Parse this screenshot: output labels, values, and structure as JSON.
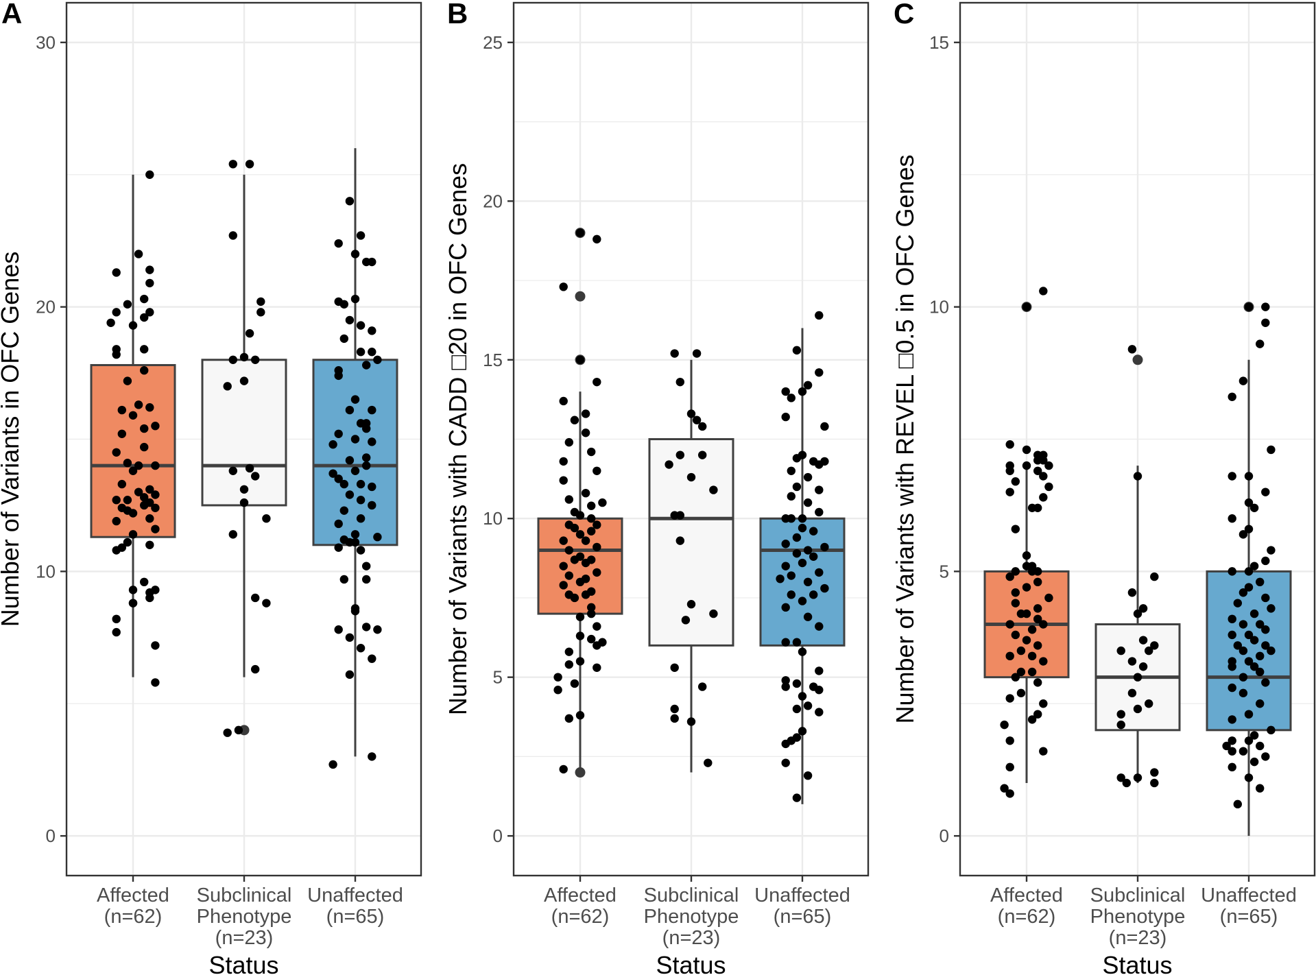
{
  "figure": {
    "background": "#ffffff"
  },
  "colors": {
    "Affected": "#EF8A62",
    "Subclinical": "#F7F7F7",
    "Unaffected": "#67A9CF",
    "box_outline": "#404040",
    "point": "#000000",
    "outlier_point": "#3a3a3a",
    "grid": "#ebebeb",
    "panel_border": "#333333"
  },
  "chart_data": [
    {
      "panel_label": "A",
      "type": "box",
      "xlabel": "Status",
      "ylabel": "Number of Variants in OFC Genes",
      "ylim": [
        -1.5,
        31.5
      ],
      "yticks": [
        0,
        10,
        20,
        30
      ],
      "grid": true,
      "categories": [
        {
          "lines": [
            "Affected",
            "(n=62)"
          ]
        },
        {
          "lines": [
            "Subclinical",
            "Phenotype",
            "(n=23)"
          ]
        },
        {
          "lines": [
            "Unaffected",
            "(n=65)"
          ]
        }
      ],
      "boxes": [
        {
          "category": "Affected",
          "min": 6,
          "q1": 11.3,
          "median": 14,
          "q3": 17.8,
          "max": 25,
          "outliers": []
        },
        {
          "category": "Subclinical",
          "min": 6,
          "q1": 12.5,
          "median": 14,
          "q3": 18,
          "max": 25,
          "outliers": [
            4
          ]
        },
        {
          "category": "Unaffected",
          "min": 3,
          "q1": 11,
          "median": 14,
          "q3": 18,
          "max": 26,
          "outliers": []
        }
      ],
      "points": [
        [
          5.8,
          7.2,
          7.7,
          8.2,
          8.8,
          8.8,
          9.0,
          9.2,
          9.3,
          9.3,
          9.6,
          10.8,
          10.9,
          11.0,
          11.1,
          11.4,
          11.6,
          11.9,
          12.0,
          12.2,
          12.3,
          12.4,
          12.4,
          12.5,
          12.6,
          12.7,
          12.7,
          12.8,
          12.9,
          13.0,
          13.1,
          13.3,
          13.8,
          14.0,
          14.0,
          14.1,
          14.5,
          14.7,
          15.2,
          15.4,
          15.5,
          15.9,
          16.1,
          16.2,
          16.3,
          17.2,
          17.6,
          18.2,
          18.4,
          18.4,
          19.3,
          19.4,
          19.6,
          19.8,
          19.8,
          20.1,
          20.3,
          20.9,
          21.3,
          21.4,
          22.0,
          25.0
        ],
        [
          3.9,
          4.0,
          6.3,
          8.8,
          9.0,
          11.4,
          12.0,
          12.6,
          13.1,
          13.6,
          13.8,
          13.9,
          17.0,
          17.2,
          18.0,
          18.0,
          18.1,
          19.0,
          19.8,
          20.2,
          22.7,
          25.4,
          25.4
        ],
        [
          2.7,
          3.0,
          6.1,
          6.7,
          7.1,
          7.5,
          7.8,
          7.8,
          7.9,
          8.5,
          8.6,
          9.7,
          9.7,
          10.2,
          10.8,
          10.9,
          11.1,
          11.1,
          11.2,
          11.3,
          11.4,
          11.8,
          12.0,
          12.3,
          12.5,
          12.7,
          12.9,
          13.2,
          13.3,
          13.3,
          13.5,
          13.7,
          13.8,
          14.0,
          14.2,
          14.3,
          14.8,
          14.9,
          15.0,
          15.2,
          15.4,
          15.6,
          15.6,
          16.1,
          16.1,
          16.5,
          17.4,
          17.6,
          17.8,
          18.0,
          18.3,
          18.3,
          18.8,
          19.1,
          19.3,
          19.5,
          20.1,
          20.2,
          20.3,
          21.7,
          21.7,
          22.0,
          22.4,
          22.7,
          24.0
        ]
      ],
      "point_offsets": [
        [
          0.2,
          0.2,
          -0.15,
          -0.15,
          0.0,
          0.0,
          0.15,
          0.15,
          0.2,
          0.0,
          0.1,
          -0.15,
          -0.1,
          0.15,
          -0.05,
          0.0,
          0.2,
          -0.15,
          0.15,
          0.0,
          -0.05,
          0.2,
          -0.1,
          0.1,
          0.15,
          -0.05,
          -0.15,
          0.1,
          0.2,
          0.05,
          0.15,
          -0.1,
          0.0,
          0.05,
          0.2,
          -0.05,
          -0.15,
          0.1,
          -0.1,
          0.1,
          0.2,
          0.0,
          -0.1,
          0.15,
          0.05,
          -0.05,
          0.1,
          -0.15,
          -0.15,
          0.1,
          0.0,
          -0.2,
          0.1,
          0.15,
          -0.15,
          -0.05,
          0.1,
          0.15,
          -0.15,
          0.15,
          0.05,
          0.15
        ],
        [
          -0.15,
          -0.05,
          0.1,
          0.2,
          0.1,
          -0.1,
          0.2,
          0.0,
          0.0,
          0.1,
          -0.1,
          0.05,
          -0.15,
          0.0,
          0.1,
          -0.1,
          0.0,
          0.05,
          0.15,
          0.15,
          -0.1,
          0.05,
          -0.1
        ],
        [
          -0.2,
          0.15,
          -0.05,
          0.15,
          0.05,
          -0.05,
          -0.15,
          0.2,
          0.1,
          0.0,
          0.0,
          -0.1,
          0.1,
          0.1,
          0.05,
          -0.15,
          0.0,
          -0.05,
          -0.1,
          0.2,
          0.0,
          -0.15,
          0.05,
          -0.1,
          0.15,
          0.05,
          -0.05,
          0.15,
          -0.1,
          0.05,
          -0.15,
          -0.2,
          0.0,
          0.1,
          -0.05,
          0.1,
          -0.2,
          0.15,
          0.0,
          -0.15,
          0.1,
          0.05,
          0.1,
          0.15,
          -0.05,
          0.0,
          -0.15,
          -0.15,
          0.1,
          0.2,
          0.15,
          0.05,
          -0.1,
          0.15,
          0.05,
          -0.05,
          -0.1,
          -0.15,
          0.0,
          0.1,
          0.15,
          0.0,
          -0.15,
          0.05,
          -0.05
        ]
      ]
    },
    {
      "panel_label": "B",
      "type": "box",
      "xlabel": "Status",
      "ylabel": "Number of Variants with CADD □20 in OFC Genes",
      "ylim": [
        -1.25,
        26.25
      ],
      "yticks": [
        0,
        5,
        10,
        15,
        20,
        25
      ],
      "grid": true,
      "categories": [
        {
          "lines": [
            "Affected",
            "(n=62)"
          ]
        },
        {
          "lines": [
            "Subclinical",
            "Phenotype",
            "(n=23)"
          ]
        },
        {
          "lines": [
            "Unaffected",
            "(n=65)"
          ]
        }
      ],
      "boxes": [
        {
          "category": "Affected",
          "min": 2,
          "q1": 7,
          "median": 9,
          "q3": 10,
          "max": 14,
          "outliers": [
            2,
            15,
            17,
            19
          ]
        },
        {
          "category": "Subclinical",
          "min": 2,
          "q1": 6,
          "median": 10,
          "q3": 12.5,
          "max": 15,
          "outliers": []
        },
        {
          "category": "Unaffected",
          "min": 1,
          "q1": 6,
          "median": 9,
          "q3": 10,
          "max": 16,
          "outliers": []
        }
      ],
      "points": [
        [
          2.1,
          3.7,
          3.8,
          4.6,
          4.8,
          5.0,
          5.3,
          5.4,
          5.5,
          5.8,
          6.0,
          6.1,
          6.2,
          6.3,
          6.6,
          6.9,
          7.0,
          7.2,
          7.5,
          7.6,
          7.6,
          7.7,
          7.9,
          8.0,
          8.1,
          8.2,
          8.3,
          8.5,
          8.6,
          8.7,
          8.7,
          8.8,
          9.0,
          9.1,
          9.3,
          9.3,
          9.5,
          9.6,
          9.7,
          9.8,
          9.8,
          10.0,
          10.1,
          10.2,
          10.4,
          10.5,
          10.6,
          10.8,
          11.2,
          11.5,
          11.8,
          12.1,
          12.4,
          12.7,
          13.1,
          13.3,
          13.7,
          14.3,
          15.0,
          17.3,
          18.8,
          19.0
        ],
        [
          2.3,
          3.6,
          3.7,
          4.0,
          4.7,
          5.3,
          6.8,
          7.0,
          7.3,
          9.3,
          10.1,
          10.1,
          10.9,
          11.3,
          11.7,
          12.0,
          12.0,
          12.9,
          13.1,
          13.3,
          14.3,
          15.2,
          15.2
        ],
        [
          1.2,
          1.9,
          2.3,
          2.9,
          3.0,
          3.1,
          3.3,
          3.9,
          4.0,
          4.1,
          4.4,
          4.6,
          4.7,
          4.7,
          4.8,
          4.9,
          5.2,
          5.8,
          6.1,
          6.1,
          6.6,
          6.9,
          7.2,
          7.4,
          7.6,
          7.6,
          7.8,
          8.0,
          8.1,
          8.2,
          8.3,
          8.5,
          8.6,
          8.8,
          8.9,
          9.0,
          9.1,
          9.2,
          9.4,
          9.6,
          9.7,
          10.0,
          10.0,
          10.0,
          10.2,
          10.5,
          10.7,
          10.9,
          11.0,
          11.3,
          11.5,
          11.7,
          11.8,
          11.8,
          11.9,
          12.0,
          12.9,
          13.2,
          13.8,
          14.0,
          14.0,
          14.2,
          14.6,
          15.3,
          16.4
        ]
      ],
      "point_offsets": [
        [
          -0.15,
          -0.1,
          0.0,
          -0.2,
          -0.05,
          -0.2,
          0.15,
          -0.1,
          0.0,
          -0.1,
          0.15,
          0.2,
          0.1,
          0.0,
          0.15,
          0.0,
          0.1,
          0.1,
          -0.05,
          -0.1,
          0.05,
          0.1,
          -0.15,
          0.0,
          0.05,
          -0.1,
          0.15,
          -0.15,
          0.05,
          0.1,
          -0.05,
          0.0,
          -0.1,
          0.15,
          0.05,
          -0.15,
          0.0,
          0.1,
          -0.05,
          0.15,
          -0.1,
          0.1,
          0.0,
          -0.05,
          0.1,
          0.2,
          -0.1,
          0.05,
          -0.15,
          0.15,
          -0.15,
          0.1,
          -0.1,
          0.05,
          -0.05,
          0.05,
          -0.15,
          0.15,
          0.0,
          -0.15,
          0.15,
          0.0
        ],
        [
          0.15,
          0.0,
          -0.15,
          -0.15,
          0.1,
          -0.15,
          -0.05,
          0.2,
          0.0,
          -0.1,
          -0.15,
          -0.1,
          0.2,
          0.0,
          -0.2,
          -0.1,
          0.1,
          0.1,
          0.05,
          0.0,
          -0.1,
          -0.15,
          0.05
        ],
        [
          -0.05,
          0.05,
          -0.15,
          -0.15,
          -0.1,
          -0.05,
          0.0,
          0.15,
          -0.05,
          0.05,
          0.0,
          0.15,
          -0.15,
          0.1,
          -0.05,
          -0.15,
          0.15,
          0.0,
          -0.05,
          -0.15,
          0.15,
          0.05,
          -0.15,
          0.0,
          0.1,
          -0.1,
          0.2,
          0.05,
          -0.2,
          -0.1,
          0.15,
          -0.15,
          0.0,
          0.1,
          -0.05,
          0.05,
          0.2,
          -0.15,
          -0.05,
          0.1,
          0.0,
          -0.1,
          0.0,
          -0.15,
          0.15,
          0.05,
          -0.1,
          0.15,
          -0.05,
          0.05,
          -0.1,
          0.15,
          0.1,
          0.2,
          -0.05,
          0.0,
          0.2,
          -0.15,
          -0.1,
          0.0,
          -0.15,
          0.05,
          0.15,
          -0.05,
          0.15
        ]
      ]
    },
    {
      "panel_label": "C",
      "type": "box",
      "xlabel": "Status",
      "ylabel": "Number of Variants with REVEL □0.5 in OFC Genes",
      "ylim": [
        -0.75,
        15.75
      ],
      "yticks": [
        0,
        5,
        10,
        15
      ],
      "grid": true,
      "categories": [
        {
          "lines": [
            "Affected",
            "(n=62)"
          ]
        },
        {
          "lines": [
            "Subclinical",
            "Phenotype",
            "(n=23)"
          ]
        },
        {
          "lines": [
            "Unaffected",
            "(n=65)"
          ]
        }
      ],
      "boxes": [
        {
          "category": "Affected",
          "min": 1,
          "q1": 3,
          "median": 4,
          "q3": 5,
          "max": 7,
          "outliers": [
            10
          ]
        },
        {
          "category": "Subclinical",
          "min": 1,
          "q1": 2,
          "median": 3,
          "q3": 4,
          "max": 7,
          "outliers": [
            9
          ]
        },
        {
          "category": "Unaffected",
          "min": 0,
          "q1": 2,
          "median": 3,
          "q3": 5,
          "max": 9,
          "outliers": [
            10
          ]
        }
      ],
      "points": [
        [
          0.8,
          0.9,
          1.3,
          1.6,
          1.8,
          2.1,
          2.2,
          2.3,
          2.5,
          2.6,
          2.7,
          2.9,
          3.0,
          3.1,
          3.1,
          3.3,
          3.4,
          3.4,
          3.5,
          3.6,
          3.7,
          3.8,
          3.9,
          4.0,
          4.0,
          4.1,
          4.2,
          4.2,
          4.3,
          4.4,
          4.5,
          4.6,
          4.7,
          4.8,
          4.9,
          5.0,
          5.0,
          5.0,
          5.1,
          5.1,
          5.3,
          5.8,
          6.2,
          6.2,
          6.4,
          6.5,
          6.6,
          6.7,
          6.8,
          6.9,
          6.9,
          7.0,
          7.0,
          7.0,
          7.1,
          7.1,
          7.2,
          7.2,
          7.3,
          7.4,
          10.0,
          10.3
        ],
        [
          1.0,
          1.0,
          1.1,
          1.1,
          1.2,
          2.1,
          2.3,
          2.4,
          2.5,
          2.7,
          3.0,
          3.2,
          3.3,
          3.5,
          3.5,
          3.6,
          3.7,
          4.2,
          4.3,
          4.6,
          4.9,
          6.8,
          9.2
        ],
        [
          0.6,
          0.9,
          1.1,
          1.3,
          1.4,
          1.5,
          1.6,
          1.6,
          1.7,
          1.7,
          1.8,
          1.8,
          1.9,
          2.0,
          2.2,
          2.3,
          2.5,
          2.7,
          2.8,
          2.9,
          3.0,
          3.1,
          3.2,
          3.2,
          3.3,
          3.3,
          3.4,
          3.5,
          3.5,
          3.6,
          3.6,
          3.7,
          3.8,
          3.8,
          3.9,
          4.0,
          4.0,
          4.1,
          4.2,
          4.3,
          4.4,
          4.5,
          4.6,
          4.7,
          4.8,
          5.0,
          5.0,
          5.1,
          5.2,
          5.4,
          5.7,
          5.8,
          6.0,
          6.2,
          6.3,
          6.5,
          6.8,
          6.8,
          7.3,
          8.3,
          8.6,
          9.3,
          9.7,
          10.0,
          10.0
        ]
      ],
      "point_offsets": [
        [
          -0.15,
          -0.2,
          -0.15,
          0.15,
          -0.15,
          -0.2,
          0.05,
          0.1,
          0.15,
          -0.15,
          -0.05,
          0.1,
          -0.1,
          0.05,
          -0.05,
          0.15,
          -0.15,
          0.05,
          -0.05,
          0.1,
          0.0,
          -0.1,
          0.05,
          0.15,
          -0.15,
          0.1,
          0.0,
          -0.05,
          0.1,
          -0.1,
          0.2,
          -0.1,
          0.0,
          0.1,
          -0.15,
          0.05,
          0.1,
          -0.1,
          0.0,
          0.05,
          0.0,
          -0.1,
          0.05,
          0.1,
          0.15,
          -0.15,
          0.2,
          -0.1,
          0.15,
          -0.15,
          0.1,
          0.2,
          -0.15,
          0.0,
          0.1,
          0.15,
          0.1,
          0.15,
          0.0,
          -0.15,
          0.0,
          0.15
        ],
        [
          0.15,
          -0.1,
          -0.15,
          0.0,
          0.15,
          -0.15,
          -0.15,
          0.0,
          0.1,
          -0.05,
          0.0,
          0.05,
          -0.05,
          0.1,
          -0.15,
          0.15,
          0.05,
          0.0,
          0.05,
          -0.05,
          0.15,
          0.0,
          -0.05
        ],
        [
          -0.1,
          0.1,
          0.0,
          -0.15,
          0.05,
          0.15,
          -0.15,
          -0.05,
          0.1,
          -0.2,
          0.0,
          -0.15,
          0.05,
          0.2,
          -0.15,
          0.0,
          0.1,
          -0.05,
          -0.15,
          0.15,
          -0.05,
          0.1,
          -0.15,
          0.05,
          0.0,
          -0.15,
          0.1,
          0.2,
          -0.05,
          0.15,
          -0.1,
          0.05,
          -0.15,
          0.0,
          0.15,
          -0.05,
          0.1,
          -0.15,
          0.05,
          0.2,
          -0.1,
          0.15,
          -0.05,
          0.0,
          0.1,
          -0.15,
          0.0,
          0.05,
          0.15,
          0.2,
          -0.05,
          0.0,
          -0.15,
          0.05,
          0.0,
          0.15,
          -0.15,
          0.0,
          0.2,
          -0.15,
          -0.05,
          0.1,
          0.15,
          0.0,
          0.15
        ]
      ]
    }
  ]
}
